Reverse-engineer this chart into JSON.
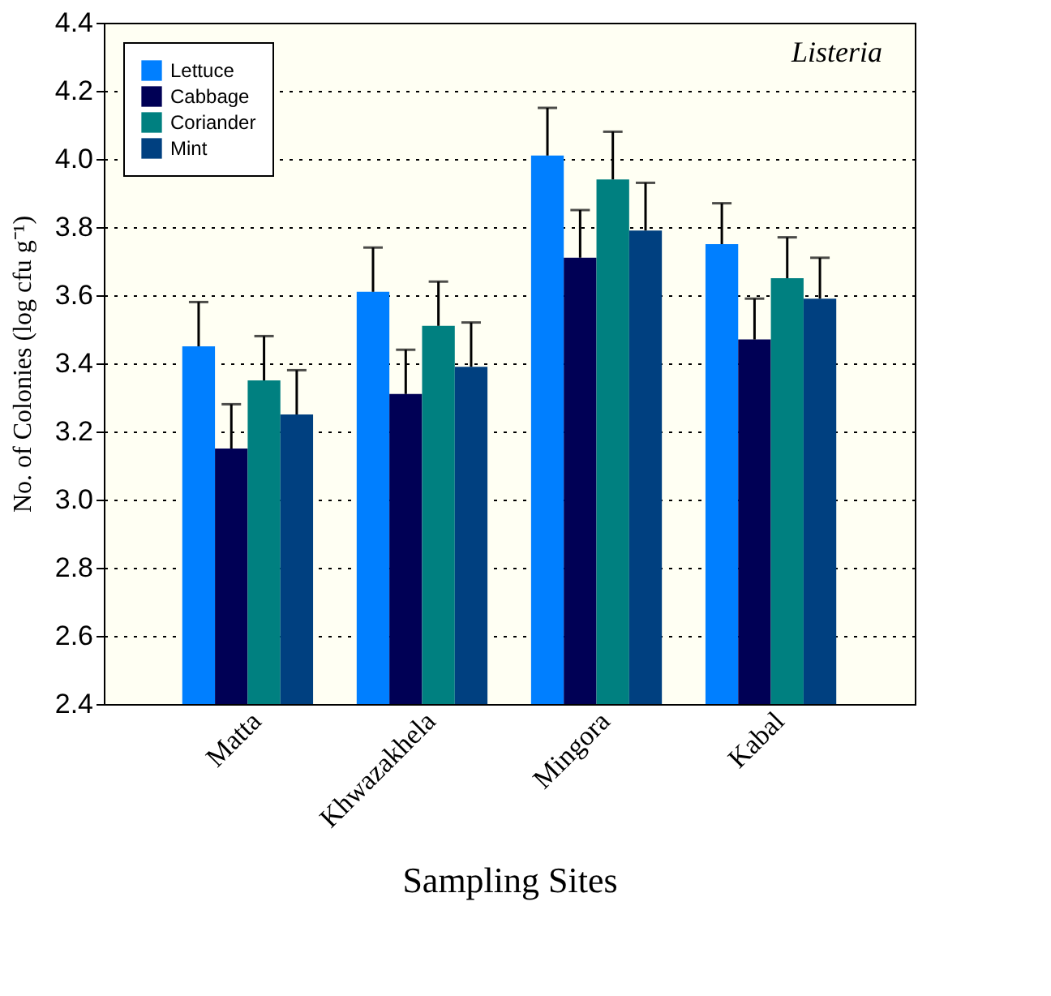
{
  "chart_data": {
    "type": "bar",
    "title": null,
    "xlabel": "Sampling Sites",
    "ylabel": "No. of Colonies (log cfu g⁻¹)",
    "annotations": [
      "Listeria"
    ],
    "categories": [
      "Matta",
      "Khwazakhela",
      "Mingora",
      "Kabal"
    ],
    "series": [
      {
        "name": "Lettuce",
        "color": "#007fff",
        "values": [
          3.45,
          3.61,
          4.01,
          3.75
        ],
        "errors": [
          [
            3.45,
            3.58
          ],
          [
            3.61,
            3.74
          ],
          [
            4.01,
            4.15
          ],
          [
            3.75,
            3.87
          ]
        ]
      },
      {
        "name": "Cabbage",
        "color": "#000055",
        "values": [
          3.15,
          3.31,
          3.71,
          3.47
        ],
        "errors": [
          [
            3.15,
            3.28
          ],
          [
            3.31,
            3.44
          ],
          [
            3.71,
            3.85
          ],
          [
            3.47,
            3.59
          ]
        ]
      },
      {
        "name": "Coriander",
        "color": "#008080",
        "values": [
          3.35,
          3.51,
          3.94,
          3.65
        ],
        "errors": [
          [
            3.35,
            3.48
          ],
          [
            3.51,
            3.64
          ],
          [
            3.94,
            4.08
          ],
          [
            3.65,
            3.77
          ]
        ]
      },
      {
        "name": "Mint",
        "color": "#004080",
        "values": [
          3.25,
          3.39,
          3.79,
          3.59
        ],
        "errors": [
          [
            3.25,
            3.38
          ],
          [
            3.39,
            3.52
          ],
          [
            3.79,
            3.93
          ],
          [
            3.59,
            3.71
          ]
        ]
      }
    ],
    "ylim": [
      2.4,
      4.4
    ],
    "yticks": [
      2.4,
      2.6,
      2.8,
      {
        "value": 3,
        "label": "3.0"
      },
      3.2,
      3.4,
      3.6,
      3.8,
      {
        "value": 4,
        "label": "4.0"
      },
      4.2,
      4.4
    ],
    "grid": "y",
    "legend": "top left"
  }
}
